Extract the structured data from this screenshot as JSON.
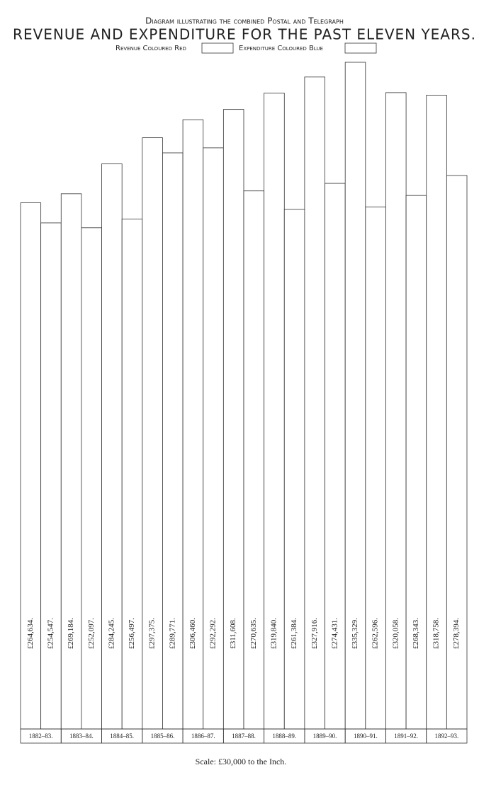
{
  "chart_data": {
    "type": "bar",
    "subtitle": "Diagram illustrating the combined Postal and Telegraph",
    "title": "REVENUE AND EXPENDITURE FOR THE PAST ELEVEN YEARS.",
    "categories": [
      "1882–83.",
      "1883–84.",
      "1884–85.",
      "1885–86.",
      "1886–87.",
      "1887–88.",
      "1888–89.",
      "1889–90.",
      "1890–91.",
      "1891–92.",
      "1892–93."
    ],
    "series": [
      {
        "name": "Revenue Coloured Red",
        "color": "#ffffff",
        "values": [
          264634,
          269184,
          284245,
          297375,
          306460,
          311608,
          319840,
          327916,
          335329,
          320058,
          318758
        ],
        "value_labels": [
          "£264,634.",
          "£269,184.",
          "£284,245.",
          "£297,375.",
          "£306,460.",
          "£311,608.",
          "£319,840.",
          "£327,916.",
          "£335,329.",
          "£320,058.",
          "£318,758."
        ]
      },
      {
        "name": "Expenditure Coloured Blue",
        "color": "#ffffff",
        "values": [
          254547,
          252097,
          256497,
          289771,
          292292,
          270635,
          261384,
          274431,
          262596,
          268343,
          278394
        ],
        "value_labels": [
          "£254,547.",
          "£252,097.",
          "£256,497.",
          "£289,771.",
          "£292,292.",
          "£270,635.",
          "£261,384.",
          "£274,431.",
          "£262,596.",
          "£268,343.",
          "£278,394."
        ]
      }
    ],
    "scale_note": "Scale: £30,000 to the Inch."
  }
}
